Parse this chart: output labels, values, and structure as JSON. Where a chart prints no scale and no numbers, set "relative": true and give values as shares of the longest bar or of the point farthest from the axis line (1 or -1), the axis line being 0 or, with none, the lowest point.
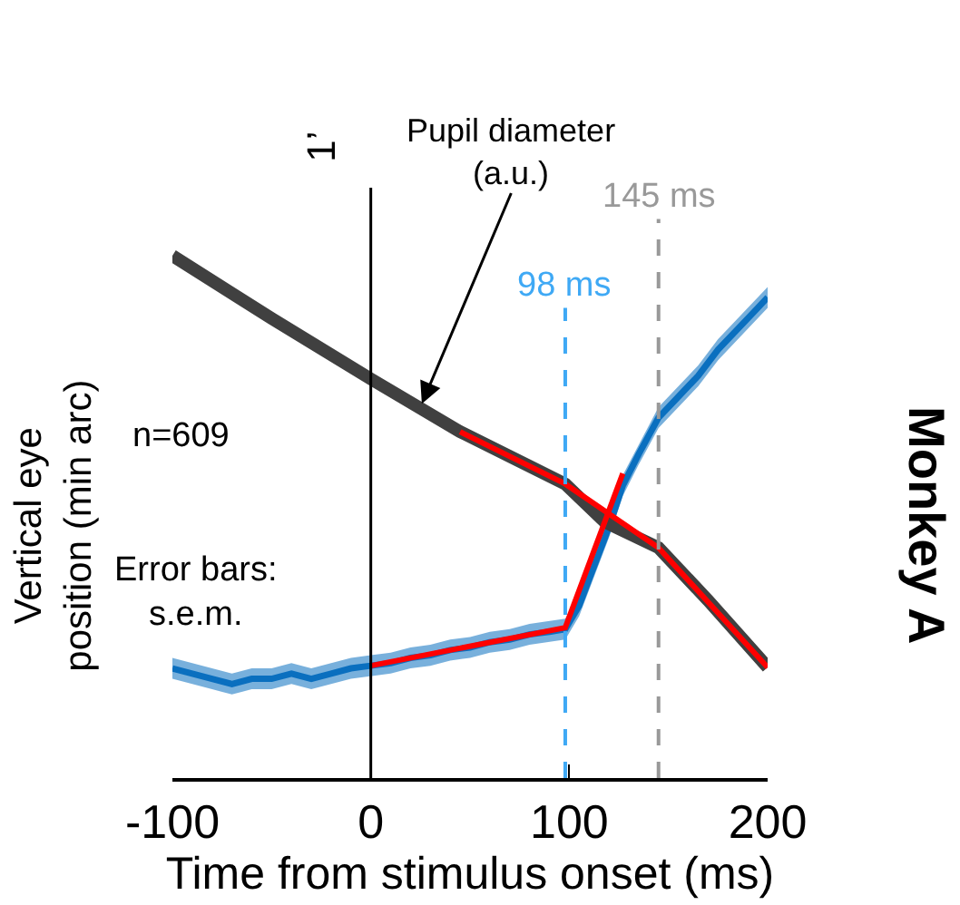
{
  "chart_data": {
    "type": "line",
    "relative": true,
    "xlabel": "Time from stimulus onset (ms)",
    "ylabel": "Vertical eye position (min arc)",
    "xlim": [
      -100,
      200
    ],
    "xticks": [
      -100,
      0,
      100,
      200
    ],
    "marker": "none",
    "tick_labels": "x",
    "series": [
      {
        "color": "#0a6fbf",
        "x": [
          -100,
          -90,
          -80,
          -70,
          -60,
          -50,
          -40,
          -30,
          -20,
          -10,
          0,
          10,
          20,
          30,
          40,
          50,
          60,
          70,
          80,
          90,
          98,
          105,
          110,
          115,
          120,
          127,
          135,
          145,
          155,
          165,
          175,
          185,
          195,
          200
        ],
        "values": [
          0.21,
          0.2,
          0.19,
          0.18,
          0.19,
          0.19,
          0.2,
          0.19,
          0.2,
          0.21,
          0.215,
          0.22,
          0.23,
          0.235,
          0.245,
          0.25,
          0.26,
          0.265,
          0.275,
          0.28,
          0.285,
          0.33,
          0.38,
          0.43,
          0.48,
          0.56,
          0.62,
          0.69,
          0.73,
          0.77,
          0.82,
          0.86,
          0.9,
          0.92
        ],
        "lower": [
          0.19,
          0.18,
          0.17,
          0.16,
          0.17,
          0.17,
          0.18,
          0.17,
          0.18,
          0.19,
          0.195,
          0.2,
          0.21,
          0.215,
          0.225,
          0.23,
          0.24,
          0.245,
          0.255,
          0.26,
          0.265,
          0.31,
          0.36,
          0.41,
          0.46,
          0.54,
          0.6,
          0.67,
          0.71,
          0.75,
          0.8,
          0.84,
          0.88,
          0.9
        ],
        "upper": [
          0.23,
          0.22,
          0.21,
          0.2,
          0.21,
          0.21,
          0.22,
          0.21,
          0.22,
          0.23,
          0.235,
          0.24,
          0.25,
          0.255,
          0.265,
          0.27,
          0.28,
          0.285,
          0.295,
          0.3,
          0.305,
          0.35,
          0.4,
          0.45,
          0.5,
          0.58,
          0.64,
          0.71,
          0.75,
          0.79,
          0.84,
          0.88,
          0.92,
          0.94
        ]
      },
      {
        "color": "#404040",
        "x": [
          -100,
          -50,
          0,
          45,
          98,
          118,
          145,
          170,
          200
        ],
        "values": [
          1.0,
          0.88,
          0.764,
          0.663,
          0.563,
          0.49,
          0.441,
          0.34,
          0.212
        ]
      },
      {
        "color": "#ff0000",
        "x": [
          45,
          98,
          145,
          200
        ],
        "values": [
          0.663,
          0.563,
          0.441,
          0.212
        ]
      },
      {
        "color": "#ff0000",
        "x": [
          0,
          98,
          127
        ],
        "values": [
          0.215,
          0.288,
          0.583
        ]
      }
    ],
    "ref_lines": [
      {
        "axis": "x",
        "value": 0,
        "label": null,
        "color": "#000000",
        "line_style": "solid"
      },
      {
        "axis": "x",
        "value": 98,
        "label": "98 ms",
        "color": "#3fa9f5",
        "line_style": "dashed"
      },
      {
        "axis": "x",
        "value": 145,
        "label": "145 ms",
        "color": "#999999",
        "line_style": "dashed"
      }
    ],
    "annotations": [
      {
        "text": "Pupil diameter (a.u.)",
        "x": 25,
        "y": 0.71
      },
      "1’",
      "n=609",
      "Error bars: s.e.m.",
      "Monkey A"
    ]
  }
}
